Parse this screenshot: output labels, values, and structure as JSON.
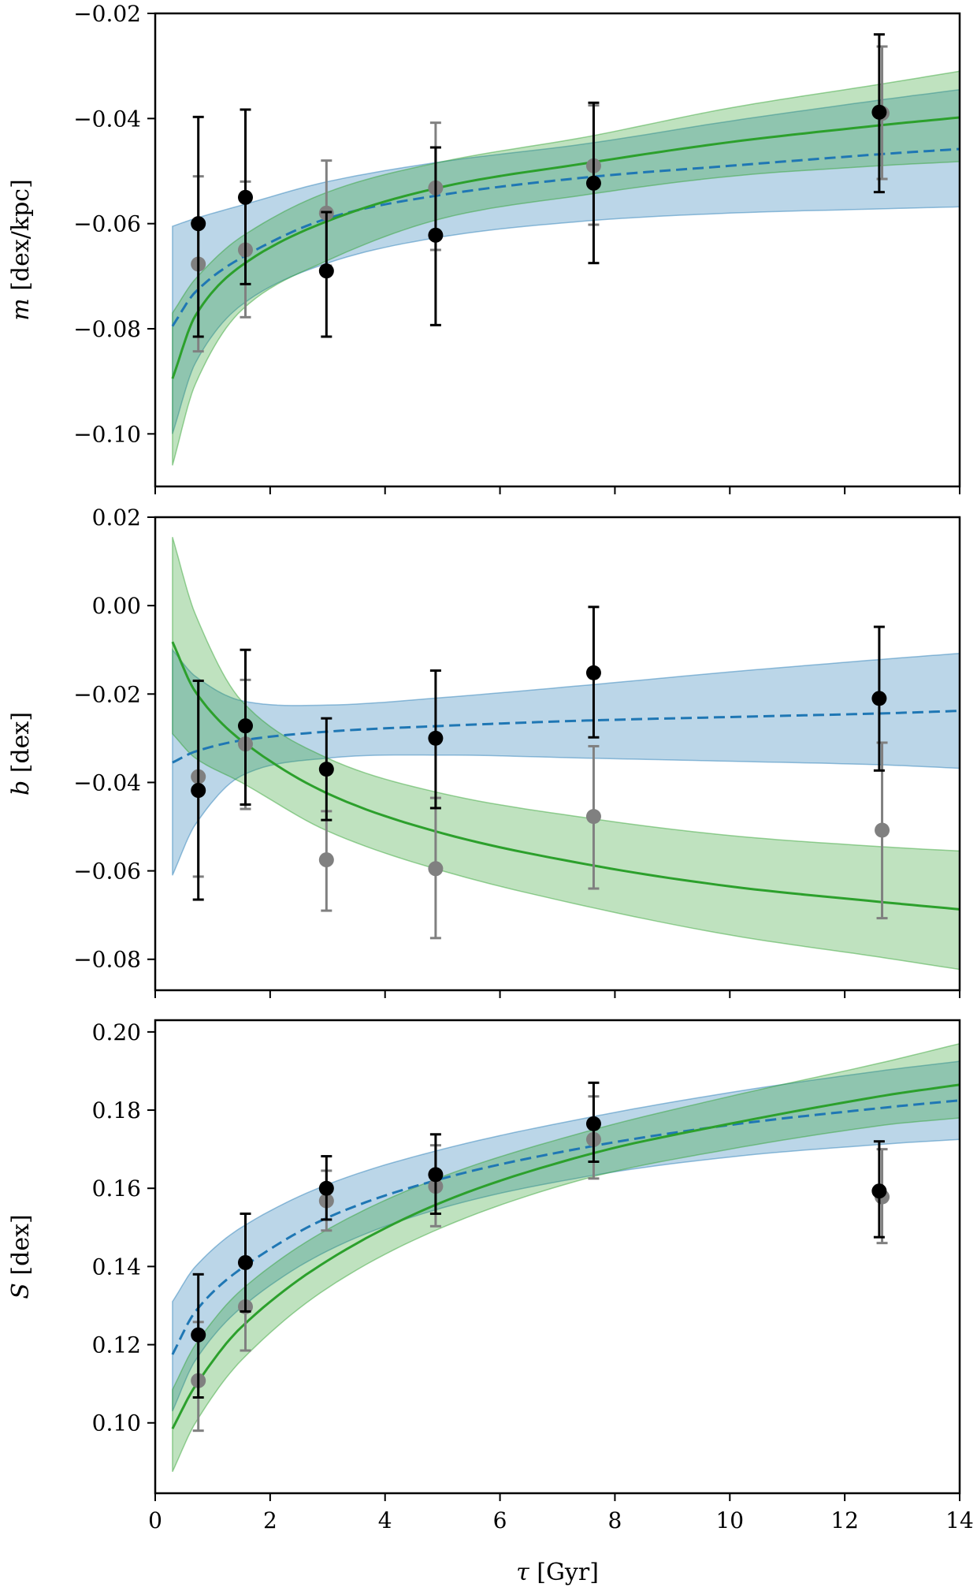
{
  "chart_data": [
    {
      "type": "line",
      "panel": "top",
      "ylabel_symbol": "m",
      "ylabel_unit": "[dex/kpc]",
      "xlim": [
        0,
        14
      ],
      "ylim": [
        -0.11,
        -0.02
      ],
      "yticks": [
        -0.1,
        -0.08,
        -0.06,
        -0.04,
        -0.02
      ],
      "ytick_labels": [
        "−0.10",
        "−0.08",
        "−0.06",
        "−0.04",
        "−0.02"
      ],
      "series": [
        {
          "name": "model-dashed-blue",
          "style": "dashed",
          "color": "#1f77b4",
          "x": [
            0.3,
            0.7,
            1.5,
            3,
            5,
            7.5,
            10,
            12.6,
            14
          ],
          "y": [
            -0.0795,
            -0.073,
            -0.0665,
            -0.059,
            -0.0545,
            -0.0512,
            -0.049,
            -0.0468,
            -0.0458
          ]
        },
        {
          "name": "model-solid-green",
          "style": "solid",
          "color": "#2ca02c",
          "x": [
            0.3,
            0.7,
            1.5,
            3,
            5,
            7.5,
            10,
            12.6,
            14
          ],
          "y": [
            -0.0895,
            -0.0775,
            -0.068,
            -0.0595,
            -0.053,
            -0.0485,
            -0.0445,
            -0.0413,
            -0.0398
          ]
        }
      ],
      "bands": [
        {
          "name": "blue-band",
          "color": "#1f77b4",
          "x": [
            0.3,
            0.7,
            1.5,
            3,
            5,
            7.5,
            10,
            12.6,
            14
          ],
          "lower": [
            -0.1,
            -0.0865,
            -0.0755,
            -0.0675,
            -0.0625,
            -0.0595,
            -0.058,
            -0.0572,
            -0.0568
          ],
          "upper": [
            -0.0605,
            -0.059,
            -0.0565,
            -0.052,
            -0.0482,
            -0.0448,
            -0.0405,
            -0.0365,
            -0.0345
          ]
        },
        {
          "name": "green-band",
          "color": "#2ca02c",
          "x": [
            0.3,
            0.7,
            1.5,
            3,
            5,
            7.5,
            10,
            12.6,
            14
          ],
          "lower": [
            -0.106,
            -0.0905,
            -0.0765,
            -0.067,
            -0.059,
            -0.0545,
            -0.051,
            -0.049,
            -0.0482
          ],
          "upper": [
            -0.077,
            -0.0705,
            -0.0625,
            -0.054,
            -0.0482,
            -0.0435,
            -0.038,
            -0.0335,
            -0.031
          ]
        }
      ],
      "points_black": [
        {
          "x": 0.75,
          "y": -0.06,
          "lo": -0.0815,
          "hi": -0.0397
        },
        {
          "x": 1.57,
          "y": -0.055,
          "lo": -0.0715,
          "hi": -0.0383
        },
        {
          "x": 2.98,
          "y": -0.069,
          "lo": -0.0815,
          "hi": -0.0578
        },
        {
          "x": 4.88,
          "y": -0.0622,
          "lo": -0.0793,
          "hi": -0.0455
        },
        {
          "x": 7.63,
          "y": -0.0523,
          "lo": -0.0675,
          "hi": -0.037
        },
        {
          "x": 12.6,
          "y": -0.0388,
          "lo": -0.054,
          "hi": -0.024
        }
      ],
      "points_gray": [
        {
          "x": 0.75,
          "y": -0.0677,
          "lo": -0.0843,
          "hi": -0.051
        },
        {
          "x": 1.57,
          "y": -0.065,
          "lo": -0.0778,
          "hi": -0.052
        },
        {
          "x": 2.98,
          "y": -0.058,
          "lo": -0.068,
          "hi": -0.048
        },
        {
          "x": 4.88,
          "y": -0.0532,
          "lo": -0.065,
          "hi": -0.0408
        },
        {
          "x": 7.63,
          "y": -0.049,
          "lo": -0.0602,
          "hi": -0.0375
        },
        {
          "x": 12.65,
          "y": -0.039,
          "lo": -0.0515,
          "hi": -0.0263
        }
      ]
    },
    {
      "type": "line",
      "panel": "middle",
      "ylabel_symbol": "b",
      "ylabel_unit": "[dex]",
      "xlim": [
        0,
        14
      ],
      "ylim": [
        -0.087,
        0.02
      ],
      "yticks": [
        -0.08,
        -0.06,
        -0.04,
        -0.02,
        0.0,
        0.02
      ],
      "ytick_labels": [
        "−0.08",
        "−0.06",
        "−0.04",
        "−0.02",
        "0.00",
        "0.02"
      ],
      "series": [
        {
          "name": "model-dashed-blue",
          "style": "dashed",
          "color": "#1f77b4",
          "x": [
            0.3,
            0.7,
            1.5,
            3,
            5,
            7.5,
            10,
            12.6,
            14
          ],
          "y": [
            -0.0355,
            -0.033,
            -0.0305,
            -0.0285,
            -0.0272,
            -0.026,
            -0.0252,
            -0.0244,
            -0.0238
          ]
        },
        {
          "name": "model-solid-green",
          "style": "solid",
          "color": "#2ca02c",
          "x": [
            0.3,
            0.7,
            1.5,
            3,
            5,
            7.5,
            10,
            12.6,
            14
          ],
          "y": [
            -0.0082,
            -0.0195,
            -0.0305,
            -0.0425,
            -0.0515,
            -0.0585,
            -0.0635,
            -0.067,
            -0.0687
          ]
        }
      ],
      "bands": [
        {
          "name": "blue-band",
          "color": "#1f77b4",
          "x": [
            0.3,
            0.7,
            1.5,
            3,
            5,
            7.5,
            10,
            12.6,
            14
          ],
          "lower": [
            -0.061,
            -0.0495,
            -0.0385,
            -0.0345,
            -0.0338,
            -0.0345,
            -0.0352,
            -0.036,
            -0.0368
          ],
          "upper": [
            -0.01,
            -0.016,
            -0.0215,
            -0.0225,
            -0.0208,
            -0.018,
            -0.015,
            -0.0122,
            -0.0108
          ]
        },
        {
          "name": "green-band",
          "color": "#2ca02c",
          "x": [
            0.3,
            0.7,
            1.5,
            3,
            5,
            7.5,
            10,
            12.6,
            14
          ],
          "lower": [
            -0.029,
            -0.0345,
            -0.04,
            -0.051,
            -0.06,
            -0.068,
            -0.0745,
            -0.0795,
            -0.0823
          ]
        },
        {
          "name": "green-band-upper",
          "color": "#2ca02c",
          "x": [
            0.3,
            0.7,
            1.5,
            3,
            5,
            7.5,
            10,
            12.6,
            14
          ],
          "upper": [
            0.0155,
            -0.002,
            -0.0215,
            -0.0345,
            -0.0425,
            -0.048,
            -0.052,
            -0.0545,
            -0.0555
          ]
        }
      ],
      "points_black": [
        {
          "x": 0.75,
          "y": -0.0418,
          "lo": -0.0665,
          "hi": -0.017
        },
        {
          "x": 1.57,
          "y": -0.0272,
          "lo": -0.045,
          "hi": -0.01
        },
        {
          "x": 2.98,
          "y": -0.037,
          "lo": -0.0485,
          "hi": -0.0255
        },
        {
          "x": 4.88,
          "y": -0.03,
          "lo": -0.0458,
          "hi": -0.0147
        },
        {
          "x": 7.63,
          "y": -0.0152,
          "lo": -0.0298,
          "hi": -0.0003
        },
        {
          "x": 12.6,
          "y": -0.021,
          "lo": -0.0373,
          "hi": -0.0048
        }
      ],
      "points_gray": [
        {
          "x": 0.75,
          "y": -0.0387,
          "lo": -0.0613,
          "hi": -0.017
        },
        {
          "x": 1.57,
          "y": -0.0313,
          "lo": -0.046,
          "hi": -0.0168
        },
        {
          "x": 2.98,
          "y": -0.0575,
          "lo": -0.069,
          "hi": -0.0465
        },
        {
          "x": 4.88,
          "y": -0.0595,
          "lo": -0.0752,
          "hi": -0.0435
        },
        {
          "x": 7.63,
          "y": -0.0477,
          "lo": -0.064,
          "hi": -0.0318
        },
        {
          "x": 12.65,
          "y": -0.0508,
          "lo": -0.0707,
          "hi": -0.031
        }
      ]
    },
    {
      "type": "line",
      "panel": "bottom",
      "ylabel_symbol": "S",
      "ylabel_unit": "[dex]",
      "xlabel_symbol": "τ",
      "xlabel_unit": "[Gyr]",
      "xlim": [
        0,
        14
      ],
      "ylim": [
        0.082,
        0.203
      ],
      "xticks": [
        0,
        2,
        4,
        6,
        8,
        10,
        12,
        14
      ],
      "xtick_labels": [
        "0",
        "2",
        "4",
        "6",
        "8",
        "10",
        "12",
        "14"
      ],
      "yticks": [
        0.1,
        0.12,
        0.14,
        0.16,
        0.18,
        0.2
      ],
      "ytick_labels": [
        "0.10",
        "0.12",
        "0.14",
        "0.16",
        "0.18",
        "0.20"
      ],
      "series": [
        {
          "name": "model-dashed-blue",
          "style": "dashed",
          "color": "#1f77b4",
          "x": [
            0.3,
            0.7,
            1.5,
            3,
            5,
            7.5,
            10,
            12.6,
            14
          ],
          "y": [
            0.1175,
            0.1285,
            0.1395,
            0.1525,
            0.1625,
            0.1705,
            0.1762,
            0.1805,
            0.1825
          ]
        },
        {
          "name": "model-solid-green",
          "style": "solid",
          "color": "#2ca02c",
          "x": [
            0.3,
            0.7,
            1.5,
            3,
            5,
            7.5,
            10,
            12.6,
            14
          ],
          "y": [
            0.0985,
            0.1095,
            0.1245,
            0.1415,
            0.1565,
            0.1685,
            0.1765,
            0.1835,
            0.1865
          ]
        }
      ],
      "bands": [
        {
          "name": "blue-band",
          "color": "#1f77b4",
          "x": [
            0.3,
            0.7,
            1.5,
            3,
            5,
            7.5,
            10,
            12.6,
            14
          ],
          "lower": [
            0.103,
            0.116,
            0.1295,
            0.144,
            0.155,
            0.163,
            0.168,
            0.1712,
            0.1725
          ],
          "upper": [
            0.131,
            0.14,
            0.15,
            0.161,
            0.17,
            0.178,
            0.1845,
            0.19,
            0.1925
          ]
        },
        {
          "name": "green-band",
          "color": "#2ca02c",
          "x": [
            0.3,
            0.7,
            1.5,
            3,
            5,
            7.5,
            10,
            12.6,
            14
          ],
          "lower": [
            0.0875,
            0.1,
            0.116,
            0.1345,
            0.15,
            0.1625,
            0.17,
            0.176,
            0.178
          ],
          "upper": [
            0.1085,
            0.12,
            0.134,
            0.1495,
            0.163,
            0.1745,
            0.1835,
            0.192,
            0.197
          ]
        }
      ],
      "points_black": [
        {
          "x": 0.75,
          "y": 0.1225,
          "lo": 0.1065,
          "hi": 0.138
        },
        {
          "x": 1.57,
          "y": 0.141,
          "lo": 0.1285,
          "hi": 0.1535
        },
        {
          "x": 2.98,
          "y": 0.16,
          "lo": 0.152,
          "hi": 0.1682
        },
        {
          "x": 4.88,
          "y": 0.1635,
          "lo": 0.1535,
          "hi": 0.1738
        },
        {
          "x": 7.63,
          "y": 0.1765,
          "lo": 0.1668,
          "hi": 0.187
        },
        {
          "x": 12.6,
          "y": 0.1593,
          "lo": 0.1475,
          "hi": 0.172
        }
      ],
      "points_gray": [
        {
          "x": 0.75,
          "y": 0.1108,
          "lo": 0.098,
          "hi": 0.1258
        },
        {
          "x": 1.57,
          "y": 0.1297,
          "lo": 0.1185,
          "hi": 0.1418
        },
        {
          "x": 2.98,
          "y": 0.1568,
          "lo": 0.1492,
          "hi": 0.1645
        },
        {
          "x": 4.88,
          "y": 0.1605,
          "lo": 0.1503,
          "hi": 0.171
        },
        {
          "x": 7.63,
          "y": 0.1725,
          "lo": 0.1625,
          "hi": 0.1835
        },
        {
          "x": 12.65,
          "y": 0.1578,
          "lo": 0.146,
          "hi": 0.17
        }
      ]
    }
  ]
}
